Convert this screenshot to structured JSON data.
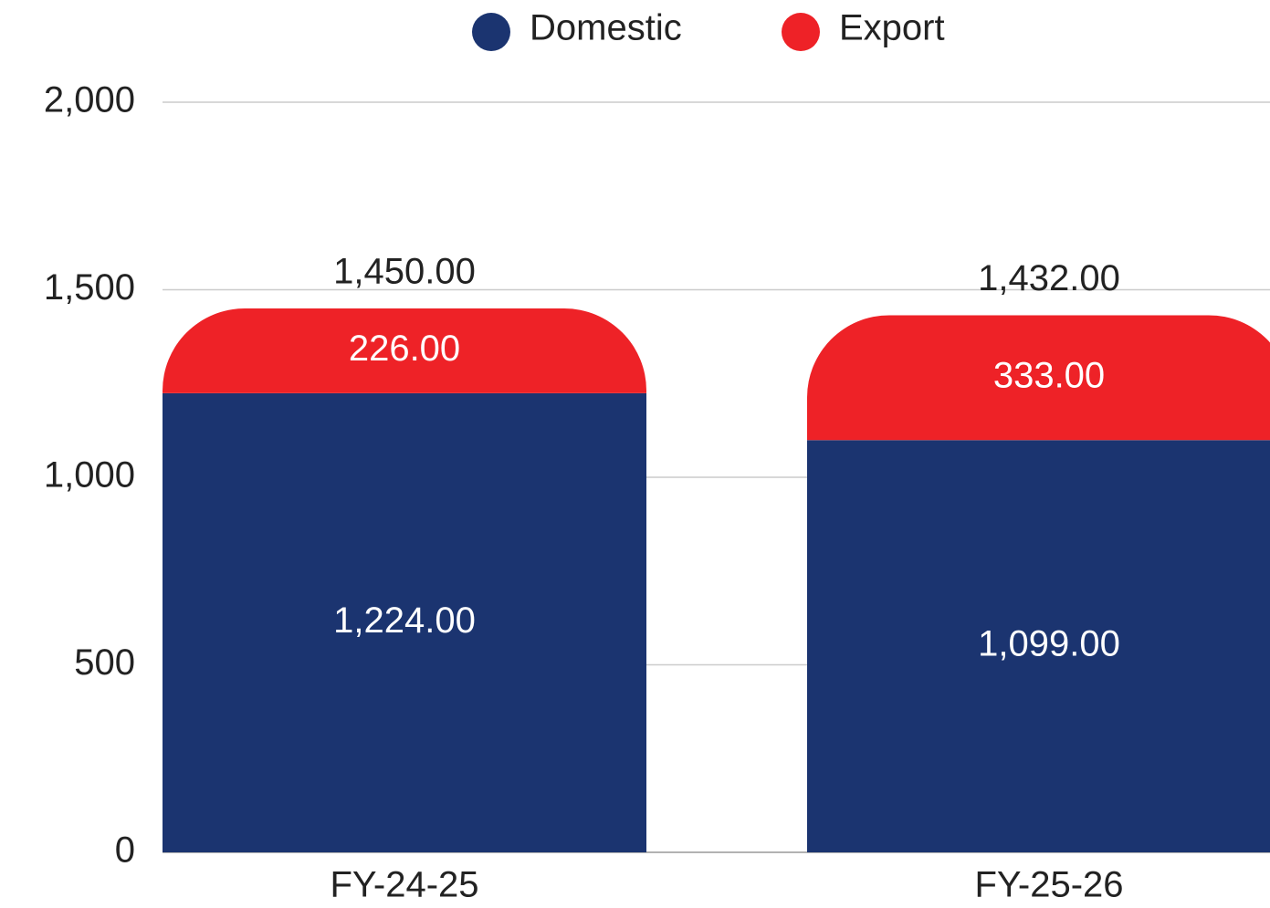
{
  "chart_data": {
    "type": "stacked_bar",
    "categories": [
      "FY-24-25",
      "FY-25-26"
    ],
    "series": [
      {
        "name": "Domestic",
        "color": "#1b3470",
        "values": [
          1224,
          1099
        ],
        "value_labels": [
          "1,224.00",
          "1,099.00"
        ]
      },
      {
        "name": "Export",
        "color": "#ee2227",
        "values": [
          226,
          333
        ],
        "value_labels": [
          "226.00",
          "333.00"
        ]
      }
    ],
    "totals": [
      1450,
      1432
    ],
    "total_labels": [
      "1,450.00",
      "1,432.00"
    ],
    "ylim": [
      0,
      2000
    ],
    "yticks": [
      0,
      500,
      {
        "value": 1000,
        "label": "1,000"
      },
      {
        "value": 1500,
        "label": "1,500"
      },
      {
        "value": 2000,
        "label": "2,000"
      }
    ],
    "grid": true,
    "legend": "top"
  }
}
